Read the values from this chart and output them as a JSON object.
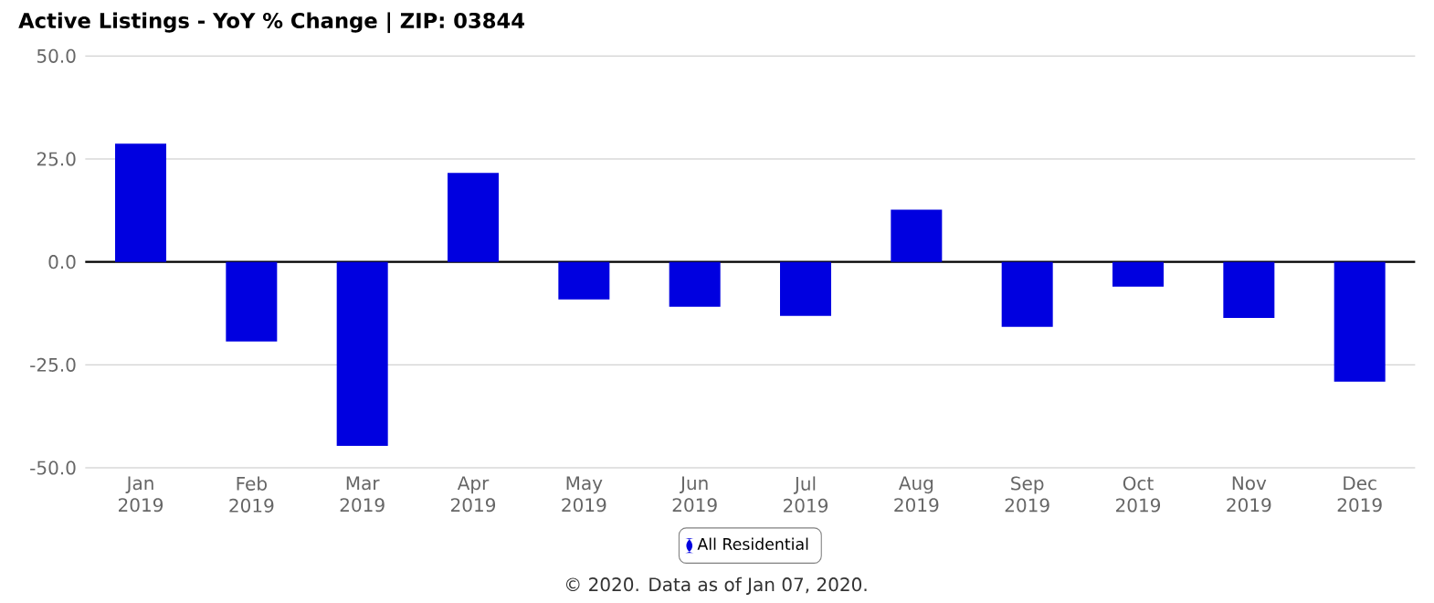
{
  "chart_data": {
    "type": "bar",
    "title": "Active Listings - YoY % Change | ZIP: 03844",
    "categories": [
      "Jan 2019",
      "Feb 2019",
      "Mar 2019",
      "Apr 2019",
      "May 2019",
      "Jun 2019",
      "Jul 2019",
      "Aug 2019",
      "Sep 2019",
      "Oct 2019",
      "Nov 2019",
      "Dec 2019"
    ],
    "series": [
      {
        "name": "All Residential",
        "color": "#0000e0",
        "values": [
          28.7,
          -19.3,
          -44.7,
          21.6,
          -9.1,
          -10.9,
          -13.1,
          12.7,
          -15.8,
          -6.0,
          -13.6,
          -29.1
        ]
      }
    ],
    "ylim": [
      -50,
      50
    ],
    "yticks": [
      {
        "value": -50,
        "label": "-50.0"
      },
      {
        "value": -25,
        "label": "-25.0"
      },
      {
        "value": 0,
        "label": "0.0"
      },
      {
        "value": 25,
        "label": "25.0"
      },
      {
        "value": 50,
        "label": "50.0"
      }
    ],
    "grid": "y",
    "legend": "bottom",
    "ref_lines": [
      {
        "axis": "y",
        "value": 0,
        "color": "#000000"
      }
    ],
    "annotations": [
      "© 2020. Data as of Jan 07, 2020."
    ]
  }
}
